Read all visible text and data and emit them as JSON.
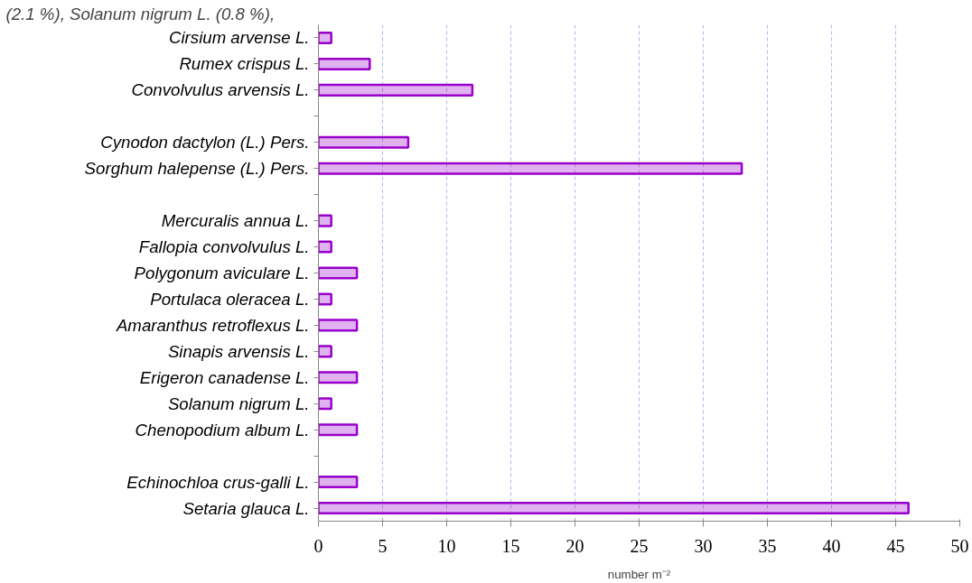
{
  "chart_data": {
    "type": "bar",
    "orientation": "horizontal",
    "categories": [
      "Cirsium arvense L.",
      "Rumex crispus L.",
      "Convolvulus arvensis L.",
      null,
      "Cynodon dactylon (L.) Pers.",
      "Sorghum halepense (L.) Pers.",
      null,
      "Mercuralis annua L.",
      "Fallopia convolvulus L.",
      "Polygonum aviculare L.",
      "Portulaca oleracea L.",
      "Amaranthus retroflexus L.",
      "Sinapis arvensis L.",
      "Erigeron canadense L.",
      "Solanum nigrum L.",
      "Chenopodium album L.",
      null,
      "Echinochloa crus-galli L.",
      "Setaria glauca L."
    ],
    "values": [
      1,
      4,
      12,
      null,
      7,
      33,
      null,
      1,
      1,
      3,
      1,
      3,
      1,
      3,
      1,
      3,
      null,
      3,
      46
    ],
    "color": "#9900cc",
    "xlim": [
      0,
      50
    ],
    "xticks": [
      0,
      5,
      10,
      15,
      20,
      25,
      30,
      35,
      40,
      45,
      50
    ],
    "xlabel": "number m⁻²",
    "grid": "x",
    "annotations": [
      "(2.1 %), Solanum nigrum L. (0.8 %),"
    ]
  }
}
